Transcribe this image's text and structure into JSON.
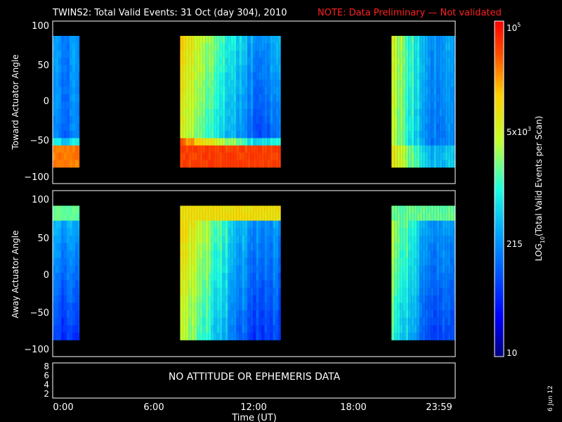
{
  "header": {
    "title": "TWINS2: Total Valid Events: 31 Oct (day 304), 2010",
    "note": "NOTE: Data Preliminary — Not validated"
  },
  "colors": {
    "background": "#000000",
    "axis": "#ffffff",
    "note": "#ff2020"
  },
  "panels": {
    "toward": {
      "ylabel": "Toward Actuator Angle",
      "yticks": [
        "100",
        "50",
        "0",
        "−50",
        "−100"
      ]
    },
    "away": {
      "ylabel": "Away Actuator Angle",
      "yticks": [
        "100",
        "50",
        "0",
        "−50",
        "−100"
      ]
    },
    "bottom": {
      "message": "NO ATTITUDE OR EPHEMERIS DATA",
      "yticks": [
        "8",
        "6",
        "4",
        "2"
      ]
    }
  },
  "xaxis": {
    "label": "Time (UT)",
    "ticks": [
      "0:00",
      "6:00",
      "12:00",
      "18:00",
      "23:59"
    ]
  },
  "colorbar": {
    "label_main": "LOG",
    "label_sub": "10",
    "label_rest": "(Total Valid Events per Scan)",
    "ticks": [
      {
        "base": "10",
        "exp": ""
      },
      {
        "base": "215",
        "exp": ""
      },
      {
        "base": "5x10",
        "exp": "3"
      },
      {
        "base": "10",
        "exp": "5"
      }
    ]
  },
  "date_stamp": "6 Jun 12",
  "chart_data": [
    {
      "type": "heatmap",
      "title": "TWINS2: Total Valid Events: 31 Oct (day 304), 2010",
      "xlabel": "Time (UT)",
      "ylabel": "Toward Actuator Angle",
      "xlim": [
        0,
        24
      ],
      "ylim": [
        -110,
        110
      ],
      "y_extent": [
        -88,
        90
      ],
      "data_intervals_hours": [
        [
          0.0,
          1.6
        ],
        [
          7.6,
          13.6
        ],
        [
          20.2,
          24.0
        ]
      ],
      "color_scale": "log10 events per scan",
      "color_range": [
        10,
        100000
      ]
    },
    {
      "type": "heatmap",
      "xlabel": "Time (UT)",
      "ylabel": "Away Actuator Angle",
      "xlim": [
        0,
        24
      ],
      "ylim": [
        -110,
        110
      ],
      "y_extent": [
        -88,
        90
      ],
      "data_intervals_hours": [
        [
          0.0,
          1.6
        ],
        [
          7.6,
          13.6
        ],
        [
          20.2,
          24.0
        ]
      ],
      "color_scale": "log10 events per scan",
      "color_range": [
        10,
        100000
      ]
    }
  ]
}
